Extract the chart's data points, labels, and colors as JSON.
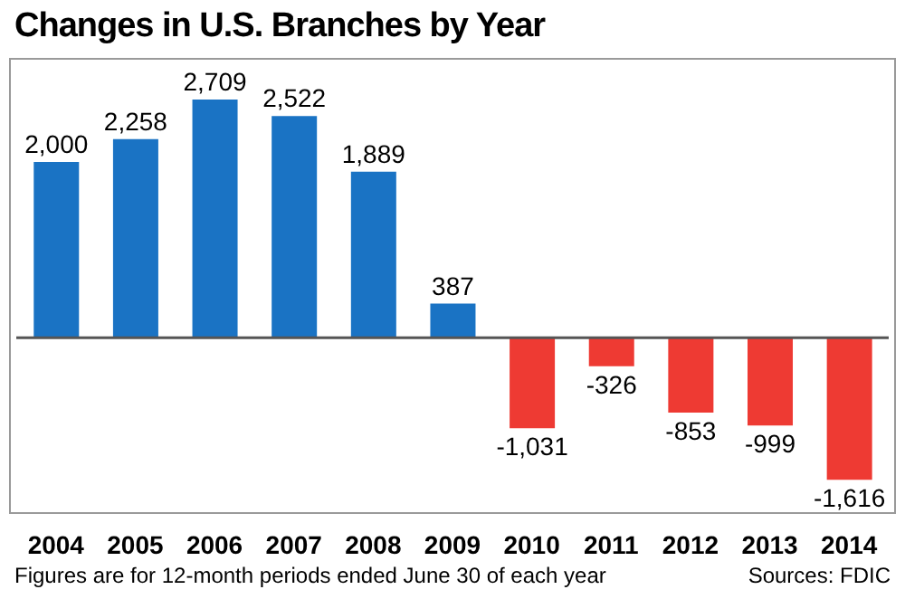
{
  "chart_data": {
    "type": "bar",
    "title": "Changes in U.S. Branches by Year",
    "categories": [
      "2004",
      "2005",
      "2006",
      "2007",
      "2008",
      "2009",
      "2010",
      "2011",
      "2012",
      "2013",
      "2014"
    ],
    "values": [
      2000,
      2258,
      2709,
      2522,
      1889,
      387,
      -1031,
      -326,
      -853,
      -999,
      -1616
    ],
    "colors": [
      "#1a73c4",
      "#1a73c4",
      "#1a73c4",
      "#1a73c4",
      "#1a73c4",
      "#1a73c4",
      "#ee3a33",
      "#ee3a33",
      "#ee3a33",
      "#ee3a33",
      "#ee3a33"
    ],
    "value_labels": [
      "2,000",
      "2,258",
      "2,709",
      "2,522",
      "1,889",
      "387",
      "-1,031",
      "-326",
      "-853",
      "-999",
      "-1,616"
    ],
    "annotations": [
      "Figures are for 12-month periods ended June 30 of each year",
      "Sources: FDIC"
    ]
  }
}
